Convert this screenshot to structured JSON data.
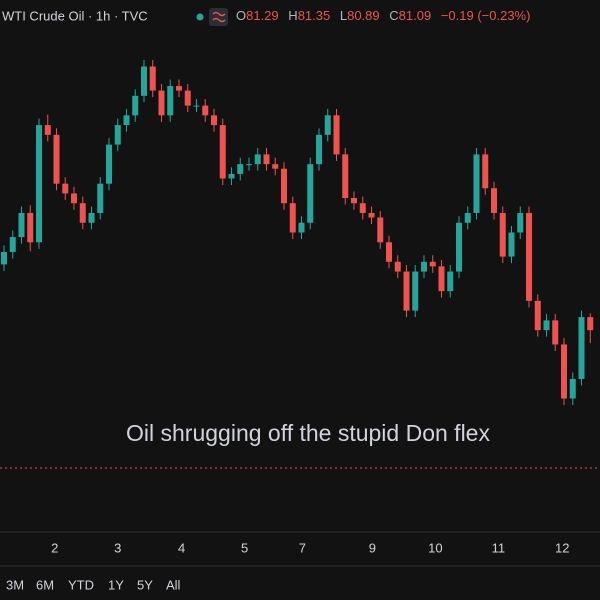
{
  "chart_data": {
    "type": "candlestick",
    "title": "WTI Crude Oil · 1h · TVC",
    "ohlc_labels": [
      "O",
      "H",
      "L",
      "C"
    ],
    "change_text": "−0.19 (−0.23%)",
    "annotation": "Oil shrugging off the stupid Don flex",
    "up_color": "#26a69a",
    "down_color": "#ef5350",
    "open": [
      82.1,
      82.29,
      82.52,
      82.89,
      82.44,
      84.24,
      84.09,
      83.34,
      83.19,
      83.04,
      82.74,
      82.89,
      83.34,
      83.94,
      84.24,
      84.39,
      84.69,
      85.14,
      84.77,
      84.39,
      84.84,
      84.77,
      84.54,
      84.54,
      84.39,
      84.24,
      83.42,
      83.49,
      83.64,
      83.64,
      83.79,
      83.64,
      83.57,
      83.04,
      82.59,
      82.74,
      83.64,
      84.09,
      84.39,
      83.79,
      83.12,
      83.04,
      82.89,
      82.82,
      82.44,
      82.14,
      81.99,
      81.39,
      81.99,
      82.14,
      82.07,
      81.69,
      81.99,
      82.74,
      82.89,
      83.79,
      83.27,
      82.89,
      82.22,
      82.59,
      82.89,
      81.54,
      81.09,
      81.24,
      80.87,
      80.04,
      80.34,
      81.29
    ],
    "high": [
      82.39,
      82.62,
      82.99,
      83.01,
      84.34,
      84.4,
      84.19,
      83.44,
      83.29,
      83.14,
      82.99,
      83.44,
      84.04,
      84.34,
      84.49,
      84.79,
      85.24,
      85.24,
      84.87,
      84.94,
      84.94,
      84.87,
      84.64,
      84.64,
      84.49,
      84.34,
      83.59,
      83.74,
      83.74,
      83.89,
      83.89,
      83.74,
      83.67,
      83.14,
      82.84,
      83.74,
      84.19,
      84.49,
      84.49,
      83.89,
      83.22,
      83.14,
      82.99,
      82.92,
      82.54,
      82.24,
      82.09,
      82.09,
      82.24,
      82.24,
      82.17,
      82.09,
      82.84,
      82.99,
      83.89,
      83.89,
      83.37,
      82.99,
      82.69,
      82.99,
      82.99,
      81.64,
      81.34,
      81.34,
      80.97,
      80.44,
      81.39,
      81.35
    ],
    "low": [
      82.0,
      82.19,
      82.42,
      82.3,
      82.34,
      83.99,
      83.24,
      83.09,
      82.94,
      82.64,
      82.64,
      82.79,
      83.24,
      83.84,
      84.14,
      84.29,
      84.59,
      84.67,
      84.29,
      84.29,
      84.67,
      84.44,
      84.44,
      84.29,
      84.14,
      83.32,
      83.32,
      83.39,
      83.54,
      83.54,
      83.54,
      83.47,
      82.94,
      82.49,
      82.49,
      82.64,
      83.54,
      83.99,
      83.69,
      83.02,
      82.94,
      82.79,
      82.72,
      82.34,
      82.04,
      81.89,
      81.29,
      81.29,
      81.89,
      81.97,
      81.59,
      81.59,
      81.89,
      82.64,
      82.79,
      83.17,
      82.79,
      82.12,
      82.12,
      82.49,
      81.44,
      80.99,
      80.99,
      80.77,
      79.94,
      79.94,
      80.24,
      80.89
    ],
    "close": [
      82.29,
      82.52,
      82.89,
      82.44,
      84.24,
      84.09,
      83.34,
      83.19,
      83.04,
      82.74,
      82.89,
      83.34,
      83.94,
      84.24,
      84.39,
      84.69,
      85.14,
      84.77,
      84.39,
      84.84,
      84.77,
      84.54,
      84.54,
      84.39,
      84.24,
      83.42,
      83.49,
      83.64,
      83.64,
      83.79,
      83.64,
      83.57,
      83.04,
      82.59,
      82.74,
      83.64,
      84.09,
      84.39,
      83.79,
      83.12,
      83.04,
      82.89,
      82.82,
      82.44,
      82.14,
      81.99,
      81.39,
      81.99,
      82.14,
      82.07,
      81.69,
      81.99,
      82.74,
      82.89,
      83.79,
      83.27,
      82.89,
      82.22,
      82.59,
      82.89,
      81.54,
      81.09,
      81.24,
      80.87,
      80.04,
      80.34,
      81.29,
      81.09
    ],
    "xticks": [
      {
        "value": 5.8,
        "label": "2"
      },
      {
        "value": 13.0,
        "label": "3"
      },
      {
        "value": 20.3,
        "label": "4"
      },
      {
        "value": 27.5,
        "label": "5"
      },
      {
        "value": 34.1,
        "label": "7"
      },
      {
        "value": 42.1,
        "label": "9"
      },
      {
        "value": 49.3,
        "label": "10"
      },
      {
        "value": 56.5,
        "label": "11"
      },
      {
        "value": 63.8,
        "label": "12"
      }
    ],
    "range_buttons": [
      "3M",
      "6M",
      "YTD",
      "1Y",
      "5Y",
      "All"
    ]
  }
}
